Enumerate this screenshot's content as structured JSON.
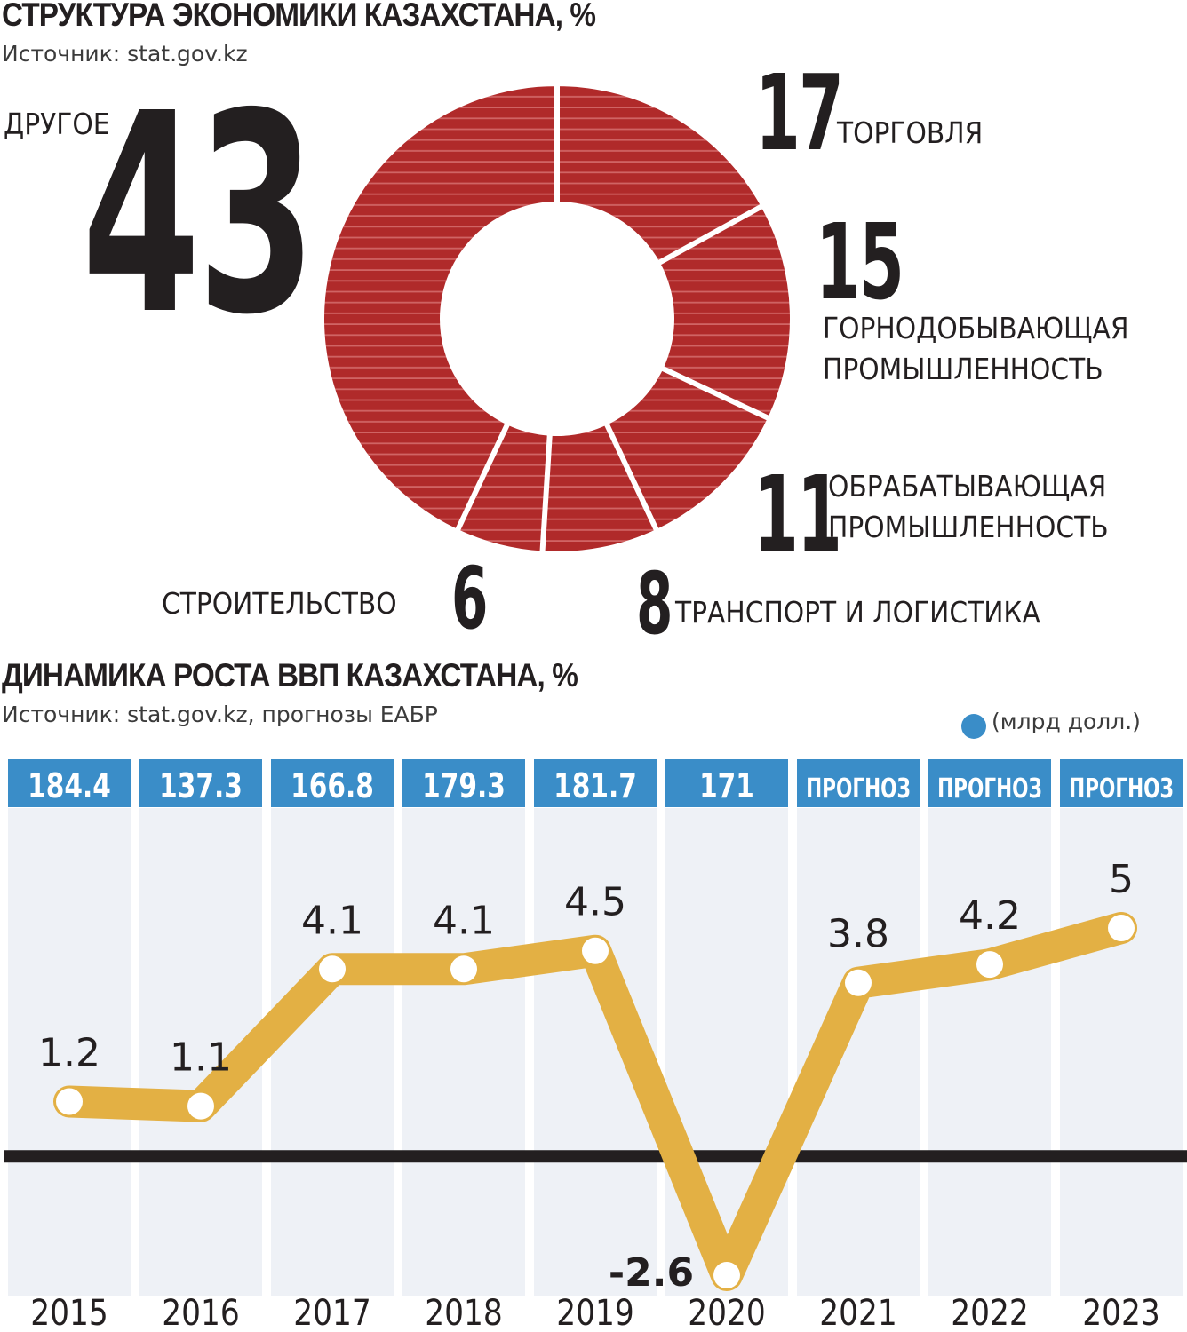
{
  "structure": {
    "title": "СТРУКТУРА ЭКОНОМИКИ КАЗАХСТАНА, %",
    "source": "Источник: stat.gov.kz",
    "colors": {
      "slice": "#b02a2a",
      "stripe": "#d06464",
      "separator": "#ffffff"
    },
    "chart_data": {
      "type": "pie",
      "variant": "donut",
      "title": "СТРУКТУРА ЭКОНОМИКИ КАЗАХСТАНА, %",
      "slices": [
        {
          "label": "ТОРГОВЛЯ",
          "value": 17
        },
        {
          "label": "ГОРНОДОБЫВАЮЩАЯ ПРОМЫШЛЕННОСТЬ",
          "value": 15
        },
        {
          "label": "ОБРАБАТЫВАЮЩАЯ ПРОМЫШЛЕННОСТЬ",
          "value": 11
        },
        {
          "label": "ТРАНСПОРТ И ЛОГИСТИКА",
          "value": 8
        },
        {
          "label": "СТРОИТЕЛЬСТВО",
          "value": 6
        },
        {
          "label": "ДРУГОЕ",
          "value": 43
        }
      ]
    },
    "labels": {
      "trade": {
        "value": "17",
        "name": "ТОРГОВЛЯ"
      },
      "mining": {
        "value": "15",
        "line1": "ГОРНОДОБЫВАЮЩАЯ",
        "line2": "ПРОМЫШЛЕННОСТЬ"
      },
      "manufacturing": {
        "value": "11",
        "line1": "ОБРАБАТЫВАЮЩАЯ",
        "line2": "ПРОМЫШЛЕННОСТЬ"
      },
      "transport": {
        "value": "8",
        "name": "ТРАНСПОРТ И ЛОГИСТИКА"
      },
      "construction": {
        "value": "6",
        "name": "СТРОИТЕЛЬСТВО"
      },
      "other": {
        "value": "43",
        "name": "ДРУГОЕ"
      }
    }
  },
  "growth": {
    "title": "ДИНАМИКА РОСТА ВВП КАЗАХСТАНА, %",
    "source": "Источник: stat.gov.kz, прогнозы ЕАБР",
    "legend": "(млрд долл.)",
    "colors": {
      "line": "#e3b044",
      "marker": "#ffffff",
      "badge": "#3a8dc8",
      "column": "#eef1f6",
      "zero_line": "#231f20"
    },
    "chart_data": {
      "type": "line",
      "title": "ДИНАМИКА РОСТА ВВП КАЗАХСТАНА, %",
      "categories": [
        "2015",
        "2016",
        "2017",
        "2018",
        "2019",
        "2020",
        "2021",
        "2022",
        "2023"
      ],
      "series": [
        {
          "values": [
            1.2,
            1.1,
            4.1,
            4.1,
            4.5,
            -2.6,
            3.8,
            4.2,
            5
          ]
        }
      ],
      "value_labels": [
        "1.2",
        "1.1",
        "4.1",
        "4.1",
        "4.5",
        "-2.6",
        "3.8",
        "4.2",
        "5"
      ],
      "gdp_usd_bn": [
        "184.4",
        "137.3",
        "166.8",
        "179.3",
        "181.7",
        "171",
        "ПРОГНОЗ",
        "ПРОГНОЗ",
        "ПРОГНОЗ"
      ],
      "ylim": [
        -2.6,
        5
      ]
    }
  }
}
